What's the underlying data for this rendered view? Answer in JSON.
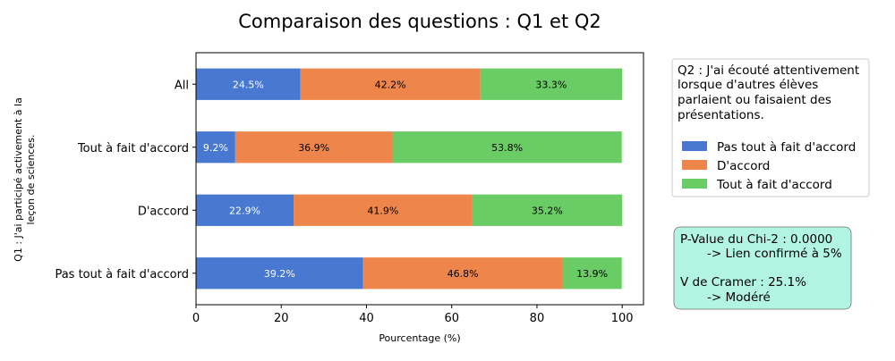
{
  "chart_data": {
    "type": "bar",
    "orientation": "horizontal",
    "stacked": true,
    "title": "Comparaison des questions : Q1 et Q2",
    "xlabel": "Pourcentage (%)",
    "ylabel_lines": [
      "Q1 : J'ai participé activement à la",
      "leçon de sciences."
    ],
    "xlim": [
      0,
      105
    ],
    "xticks": [
      0,
      20,
      40,
      60,
      80,
      100
    ],
    "categories": [
      "All",
      "Tout à fait d'accord",
      "D'accord",
      "Pas tout à fait d'accord"
    ],
    "series": [
      {
        "name": "Pas tout à fait d'accord",
        "color": "#4878d0",
        "label_color": "#ffffff",
        "values": [
          24.5,
          9.2,
          22.9,
          39.2
        ],
        "labels": [
          "24.5%",
          "9.2%",
          "22.9%",
          "39.2%"
        ]
      },
      {
        "name": "D'accord",
        "color": "#ee854a",
        "label_color": "#000000",
        "values": [
          42.2,
          36.9,
          41.9,
          46.8
        ],
        "labels": [
          "42.2%",
          "36.9%",
          "41.9%",
          "46.8%"
        ]
      },
      {
        "name": "Tout à fait d'accord",
        "color": "#6acc64",
        "label_color": "#000000",
        "values": [
          33.3,
          53.8,
          35.2,
          13.9
        ],
        "labels": [
          "33.3%",
          "53.8%",
          "35.2%",
          "13.9%"
        ]
      }
    ],
    "legend": {
      "placement": "right",
      "title_lines": [
        "Q2 : J'ai écouté attentivement",
        "lorsque d'autres élèves",
        "parlaient ou faisaient des",
        "présentations."
      ]
    },
    "annotation": {
      "lines": [
        "P-Value du Chi-2 : 0.0000",
        "-> Lien confirmé à 5%",
        "",
        "V de Cramer : 25.1%",
        "-> Modéré"
      ],
      "background": "#b2f5e2"
    }
  }
}
